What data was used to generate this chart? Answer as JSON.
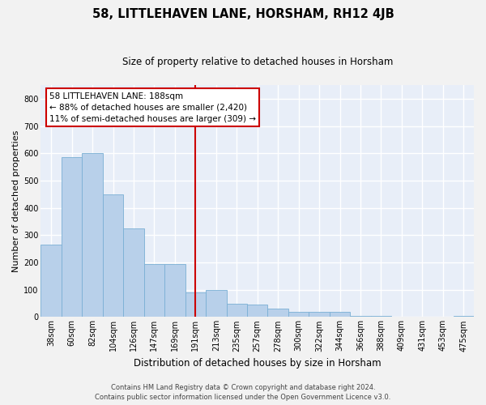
{
  "title": "58, LITTLEHAVEN LANE, HORSHAM, RH12 4JB",
  "subtitle": "Size of property relative to detached houses in Horsham",
  "xlabel": "Distribution of detached houses by size in Horsham",
  "ylabel": "Number of detached properties",
  "categories": [
    "38sqm",
    "60sqm",
    "82sqm",
    "104sqm",
    "126sqm",
    "147sqm",
    "169sqm",
    "191sqm",
    "213sqm",
    "235sqm",
    "257sqm",
    "278sqm",
    "300sqm",
    "322sqm",
    "344sqm",
    "366sqm",
    "388sqm",
    "409sqm",
    "431sqm",
    "453sqm",
    "475sqm"
  ],
  "values": [
    265,
    585,
    600,
    450,
    325,
    195,
    195,
    90,
    100,
    50,
    45,
    30,
    20,
    20,
    18,
    5,
    5,
    0,
    0,
    0,
    5
  ],
  "bar_color": "#b8d0ea",
  "bar_edge_color": "#7aafd4",
  "vline_x_index": 7,
  "vline_color": "#cc0000",
  "ylim": [
    0,
    850
  ],
  "yticks": [
    0,
    100,
    200,
    300,
    400,
    500,
    600,
    700,
    800
  ],
  "annotation_text": "58 LITTLEHAVEN LANE: 188sqm\n← 88% of detached houses are smaller (2,420)\n11% of semi-detached houses are larger (309) →",
  "annotation_box_color": "#ffffff",
  "annotation_box_edge_color": "#cc0000",
  "footer_line1": "Contains HM Land Registry data © Crown copyright and database right 2024.",
  "footer_line2": "Contains public sector information licensed under the Open Government Licence v3.0.",
  "bg_color": "#e8eef8",
  "fig_bg_color": "#f2f2f2",
  "grid_color": "#ffffff",
  "title_fontsize": 10.5,
  "subtitle_fontsize": 8.5,
  "ylabel_fontsize": 8,
  "xlabel_fontsize": 8.5,
  "tick_fontsize": 7,
  "annot_fontsize": 7.5,
  "footer_fontsize": 6
}
